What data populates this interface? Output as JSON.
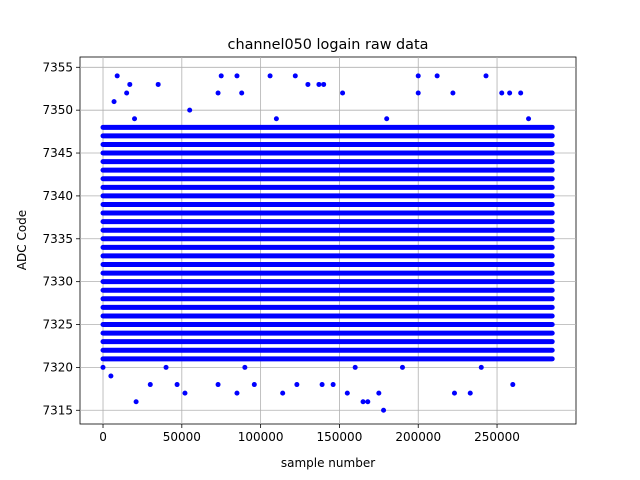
{
  "chart_data": {
    "type": "scatter",
    "title": "channel050 logain raw data",
    "xlabel": "sample number",
    "ylabel": "ADC Code",
    "color": "#0000ff",
    "grid": true,
    "xlim": [
      -14600,
      300100
    ],
    "ylim": [
      7313.4,
      7356.2
    ],
    "xticks": [
      0,
      50000,
      100000,
      150000,
      200000,
      250000
    ],
    "yticks": [
      7315,
      7320,
      7325,
      7330,
      7335,
      7340,
      7345,
      7350,
      7355
    ],
    "band_y": [
      7321,
      7322,
      7323,
      7324,
      7325,
      7326,
      7327,
      7328,
      7329,
      7330,
      7331,
      7332,
      7333,
      7334,
      7335,
      7336,
      7337,
      7338,
      7339,
      7340,
      7341,
      7342,
      7343,
      7344,
      7345,
      7346,
      7347,
      7348
    ],
    "band_start": [
      0,
      0,
      0,
      0,
      0,
      0,
      0,
      0,
      0,
      0,
      0,
      0,
      0,
      0,
      0,
      0,
      0,
      0,
      0,
      0,
      0,
      0,
      0,
      0,
      0,
      0,
      0,
      0
    ],
    "band_end": [
      285000,
      285000,
      285000,
      285000,
      285000,
      285000,
      285000,
      285000,
      285000,
      285000,
      285000,
      285000,
      285000,
      285000,
      285000,
      285000,
      285000,
      285000,
      285000,
      285000,
      285000,
      285000,
      285000,
      285000,
      285000,
      285000,
      285000,
      285000
    ],
    "x": [
      9000,
      17000,
      35000,
      75000,
      85000,
      106000,
      122000,
      200000,
      212000,
      243000,
      21000,
      52000,
      85000,
      114000,
      165000,
      168000,
      178000,
      223000,
      233000,
      30000,
      47000,
      73000,
      96000,
      123000,
      139000,
      146000,
      155000,
      175000,
      5000,
      260000,
      15000,
      73000,
      88000,
      130000,
      137000,
      140000,
      152000,
      200000,
      222000,
      253000,
      258000,
      265000,
      7000,
      55000,
      0,
      40000,
      90000,
      160000,
      190000,
      240000,
      20000,
      110000,
      180000,
      270000
    ],
    "y": [
      7354,
      7353,
      7353,
      7354,
      7354,
      7354,
      7354,
      7354,
      7354,
      7354,
      7316,
      7317,
      7317,
      7317,
      7316,
      7316,
      7315,
      7317,
      7317,
      7318,
      7318,
      7318,
      7318,
      7318,
      7318,
      7318,
      7317,
      7317,
      7319,
      7318,
      7352,
      7352,
      7352,
      7353,
      7353,
      7353,
      7352,
      7352,
      7352,
      7352,
      7352,
      7352,
      7351,
      7350,
      7320,
      7320,
      7320,
      7320,
      7320,
      7320,
      7349,
      7349,
      7349,
      7349
    ]
  }
}
